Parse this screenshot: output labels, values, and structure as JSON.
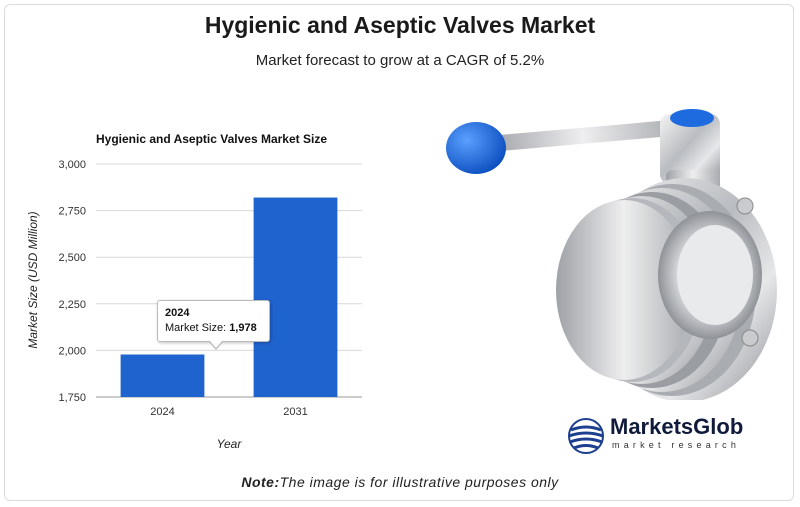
{
  "header": {
    "title": "Hygienic and Aseptic Valves Market",
    "subtitle": "Market forecast to grow at a CAGR of 5.2%"
  },
  "chart_data": {
    "type": "bar",
    "title": "Hygienic and Aseptic Valves Market Size",
    "categories": [
      "2024",
      "2031"
    ],
    "values": [
      1978,
      2820
    ],
    "xlabel": "Year",
    "ylabel": "Market Size (USD Million)",
    "ylim": [
      1750,
      3000
    ],
    "yticks": [
      1750,
      2000,
      2250,
      2500,
      2750,
      3000
    ],
    "ytick_labels": [
      "1,750",
      "2,000",
      "2,250",
      "2,500",
      "2,750",
      "3,000"
    ],
    "grid": true,
    "bar_color": "#1f63cf",
    "tooltip": {
      "year": "2024",
      "label": "Market Size: ",
      "value": "1,978"
    }
  },
  "note": {
    "prefix": "Note:",
    "text": "The image is for illustrative purposes only"
  },
  "logo": {
    "name": "MarketsGlob",
    "tagline": "market research",
    "color": "#1d3f8f"
  }
}
